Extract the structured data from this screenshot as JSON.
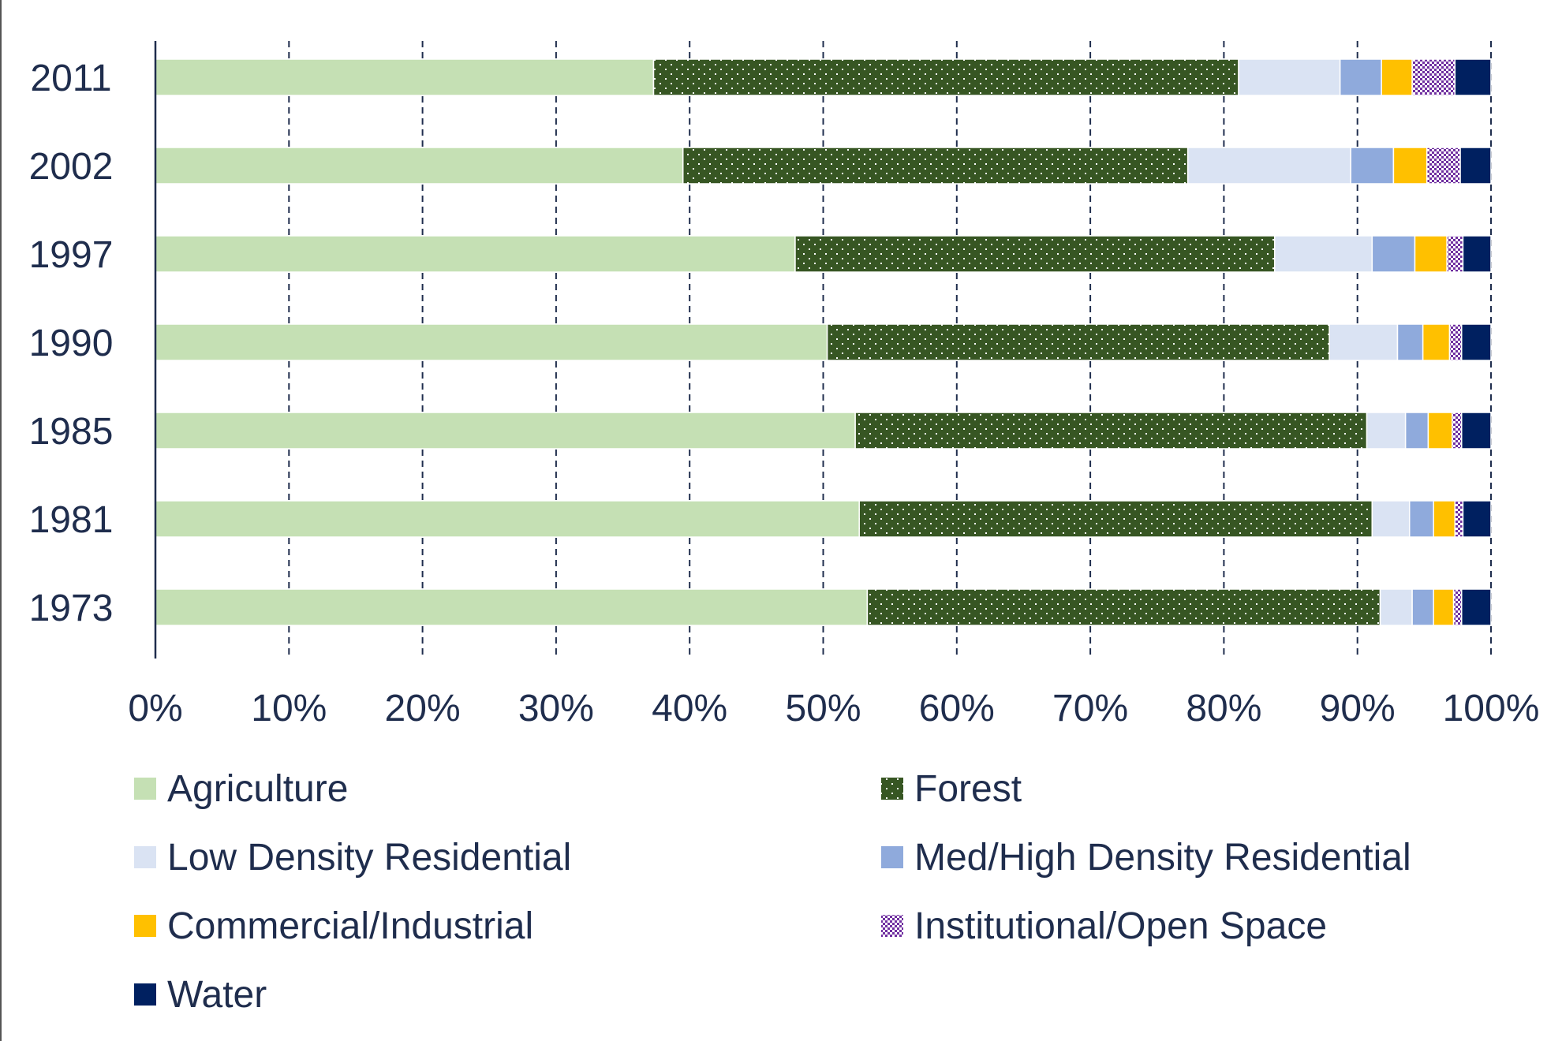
{
  "chart_data": {
    "type": "bar",
    "orientation": "horizontal",
    "stacked": "percent",
    "title": "",
    "xlabel": "",
    "ylabel": "",
    "categories": [
      "2011",
      "2002",
      "1997",
      "1990",
      "1985",
      "1981",
      "1973"
    ],
    "x_ticks": [
      "0%",
      "10%",
      "20%",
      "30%",
      "40%",
      "50%",
      "60%",
      "70%",
      "80%",
      "90%",
      "100%"
    ],
    "xlim": [
      0,
      100
    ],
    "grid": "vertical-dashed",
    "legend_position": "bottom",
    "series": [
      {
        "name": "Agriculture",
        "color": "#c5e0b4",
        "pattern": "solid",
        "values": [
          37.3,
          39.5,
          47.9,
          50.3,
          52.4,
          52.7,
          53.3
        ]
      },
      {
        "name": "Forest",
        "color": "#375623",
        "pattern": "dots",
        "values": [
          43.8,
          37.8,
          35.9,
          37.6,
          38.3,
          38.4,
          38.4
        ]
      },
      {
        "name": "Low Density Residential",
        "color": "#dae3f3",
        "pattern": "solid",
        "values": [
          7.6,
          12.2,
          7.3,
          5.1,
          2.9,
          2.8,
          2.4
        ]
      },
      {
        "name": "Med/High Density Residential",
        "color": "#8faadc",
        "pattern": "solid",
        "values": [
          3.1,
          3.2,
          3.2,
          1.9,
          1.7,
          1.8,
          1.6
        ]
      },
      {
        "name": "Commercial/Industrial",
        "color": "#ffc000",
        "pattern": "solid",
        "values": [
          2.3,
          2.5,
          2.4,
          2.0,
          1.8,
          1.6,
          1.5
        ]
      },
      {
        "name": "Institutional/Open Space",
        "color": "#7030a0",
        "pattern": "checker",
        "values": [
          3.2,
          2.5,
          1.2,
          0.9,
          0.7,
          0.6,
          0.6
        ]
      },
      {
        "name": "Water",
        "color": "#002060",
        "pattern": "solid",
        "values": [
          2.7,
          2.3,
          2.1,
          2.2,
          2.2,
          2.1,
          2.2
        ]
      }
    ]
  }
}
